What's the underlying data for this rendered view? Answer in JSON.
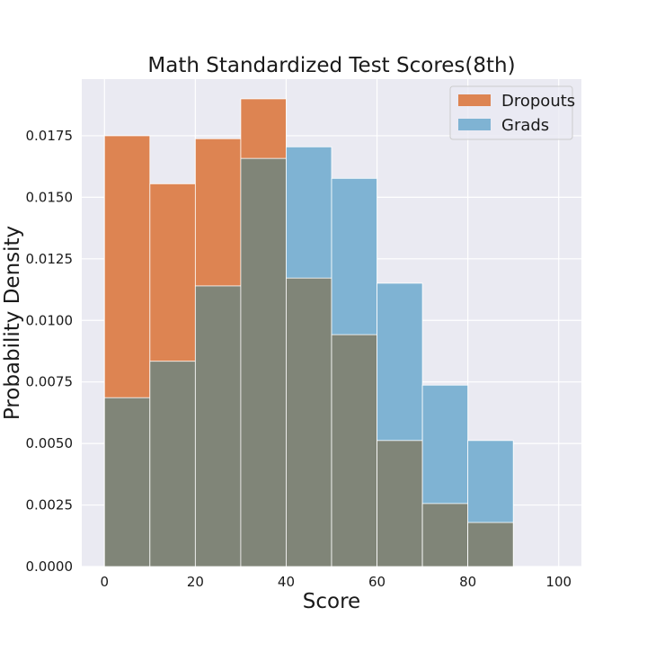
{
  "chart_data": {
    "type": "bar",
    "title": "Math Standardized Test Scores(8th)",
    "xlabel": "Score",
    "ylabel": "Probability Density",
    "xlim": [
      -5,
      105
    ],
    "ylim": [
      0,
      0.0198
    ],
    "x_ticks": [
      0,
      20,
      40,
      60,
      80,
      100
    ],
    "x_tick_labels": [
      "0",
      "20",
      "40",
      "60",
      "80",
      "100"
    ],
    "y_ticks": [
      0,
      0.0025,
      0.005,
      0.0075,
      0.01,
      0.0125,
      0.015,
      0.0175
    ],
    "y_tick_labels": [
      "0.0000",
      "0.0025",
      "0.0050",
      "0.0075",
      "0.0100",
      "0.0125",
      "0.0150",
      "0.0175"
    ],
    "bin_edges": [
      0,
      10,
      20,
      30,
      40,
      50,
      60,
      70,
      80,
      90
    ],
    "grid": true,
    "legend_position": "top-right",
    "overlap_color": "#808578",
    "series": [
      {
        "name": "Dropouts",
        "color": "#dd8452",
        "values": [
          0.0175,
          0.01555,
          0.01738,
          0.019,
          0.01172,
          0.00942,
          0.00512,
          0.00256,
          0.00179
        ]
      },
      {
        "name": "Grads",
        "color": "#7fb3d3",
        "values": [
          0.00686,
          0.00834,
          0.0114,
          0.01658,
          0.01705,
          0.01577,
          0.01151,
          0.00737,
          0.00512
        ]
      }
    ]
  }
}
